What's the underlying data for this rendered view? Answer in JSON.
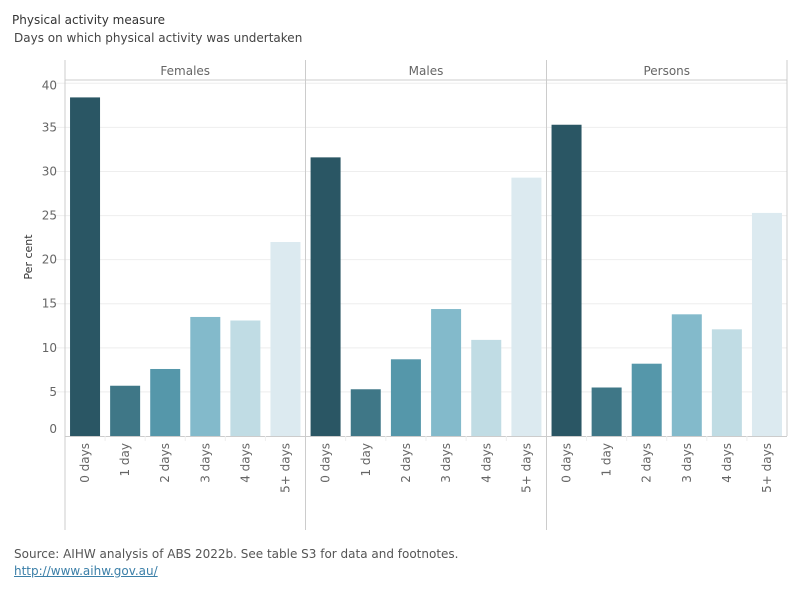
{
  "header": {
    "title": "Physical activity measure",
    "subtitle": "Days on which physical activity was undertaken"
  },
  "footer": {
    "source": "Source: AIHW analysis of ABS 2022b. See table S3 for data and footnotes.",
    "link": "http://www.aihw.gov.au/"
  },
  "chart_data": {
    "type": "bar",
    "title": "Physical activity measure",
    "subtitle": "Days on which physical activity was undertaken",
    "xlabel": "",
    "ylabel": "Per cent",
    "ylim": [
      0,
      40
    ],
    "yticks": [
      0,
      5,
      10,
      15,
      20,
      25,
      30,
      35,
      40
    ],
    "grid": true,
    "categories": [
      "0 days",
      "1 day",
      "2 days",
      "3 days",
      "4 days",
      "5+ days"
    ],
    "category_colors": [
      "#2a5664",
      "#3f7787",
      "#5597aa",
      "#83bacb",
      "#c0dce4",
      "#dceaf0"
    ],
    "panels": [
      {
        "name": "Females",
        "values": [
          38.4,
          5.7,
          7.6,
          13.5,
          13.1,
          22.0
        ]
      },
      {
        "name": "Males",
        "values": [
          31.6,
          5.3,
          8.7,
          14.4,
          10.9,
          29.3
        ]
      },
      {
        "name": "Persons",
        "values": [
          35.3,
          5.5,
          8.2,
          13.8,
          12.1,
          25.3
        ]
      }
    ]
  }
}
